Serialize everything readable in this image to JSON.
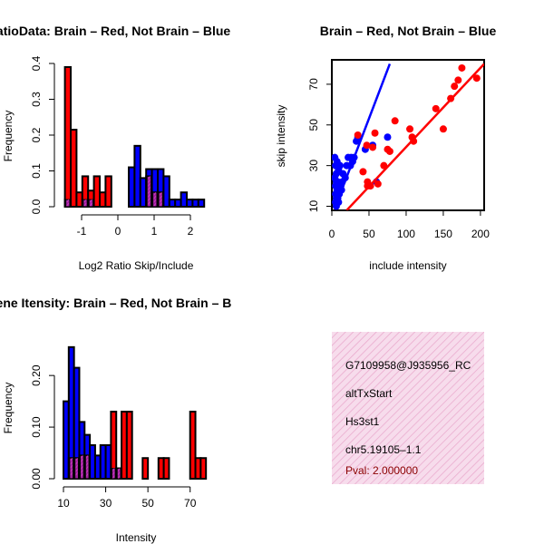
{
  "colors": {
    "red": "#ff0000",
    "blue": "#0000ff",
    "purple": "#a020a0",
    "info_bg": "#f7dcec",
    "info_hatch": "#e9a9cc",
    "pval": "#8b0000"
  },
  "chart_data": [
    {
      "type": "bar",
      "title": "RatioData: Brain – Red, Not Brain – Blue",
      "xlabel": "Log2 Ratio Skip/Include",
      "ylabel": "Frequency",
      "xlim": [
        -1.5,
        2.5
      ],
      "ylim": [
        0,
        0.4
      ],
      "xticks": [
        -1,
        0,
        1,
        2
      ],
      "yticks": [
        0.0,
        0.1,
        0.2,
        0.3,
        0.4
      ],
      "bin_width": 0.16,
      "bin_start": -1.46,
      "series": [
        {
          "name": "Not Brain",
          "color": "blue",
          "values": [
            0.02,
            0.0,
            0.0,
            0.02,
            0.02,
            0.0,
            0.0,
            0.0,
            0.0,
            0.0,
            0.0,
            0.11,
            0.17,
            0.08,
            0.105,
            0.105,
            0.105,
            0.085,
            0.02,
            0.02,
            0.04,
            0.02,
            0.02,
            0.02
          ]
        },
        {
          "name": "Brain",
          "color": "red",
          "values": [
            0.39,
            0.215,
            0.04,
            0.085,
            0.045,
            0.085,
            0.04,
            0.085,
            0.0,
            0.0,
            0.0,
            0.0,
            0.0,
            0.0,
            0.085,
            0.04,
            0.04,
            0.0,
            0.0,
            0.0,
            0.0,
            0.0,
            0.0,
            0.0
          ]
        }
      ]
    },
    {
      "type": "scatter",
      "title": "Brain – Red, Not Brain – Blue",
      "xlabel": "include intensity",
      "ylabel": "skip intensity",
      "xlim": [
        0,
        205
      ],
      "ylim": [
        8,
        82
      ],
      "xticks": [
        0,
        50,
        100,
        150,
        200
      ],
      "yticks": [
        10,
        30,
        50,
        70
      ],
      "series": [
        {
          "name": "Not Brain",
          "color": "blue",
          "points": [
            [
              5,
              12
            ],
            [
              6,
              14
            ],
            [
              7,
              18
            ],
            [
              5,
              20
            ],
            [
              8,
              22
            ],
            [
              4,
              24
            ],
            [
              6,
              26
            ],
            [
              9,
              28
            ],
            [
              5,
              30
            ],
            [
              7,
              32
            ],
            [
              4,
              34
            ],
            [
              10,
              16
            ],
            [
              12,
              20
            ],
            [
              14,
              22
            ],
            [
              8,
              14
            ],
            [
              6,
              10
            ],
            [
              15,
              26
            ],
            [
              18,
              24
            ],
            [
              11,
              30
            ],
            [
              20,
              30
            ],
            [
              9,
              12
            ],
            [
              13,
              18
            ],
            [
              22,
              34
            ],
            [
              26,
              34
            ],
            [
              25,
              30
            ],
            [
              30,
              34
            ],
            [
              28,
              32
            ],
            [
              33,
              42
            ],
            [
              35,
              44
            ],
            [
              45,
              38
            ],
            [
              55,
              40
            ],
            [
              75,
              44
            ],
            [
              60,
              22
            ],
            [
              5,
              16
            ],
            [
              6,
              22
            ]
          ]
        },
        {
          "name": "Brain",
          "color": "red",
          "points": [
            [
              35,
              45
            ],
            [
              42,
              27
            ],
            [
              47,
              40
            ],
            [
              48,
              22
            ],
            [
              52,
              20
            ],
            [
              55,
              39
            ],
            [
              58,
              46
            ],
            [
              62,
              21
            ],
            [
              70,
              30
            ],
            [
              75,
              38
            ],
            [
              78,
              37
            ],
            [
              85,
              52
            ],
            [
              105,
              48
            ],
            [
              108,
              44
            ],
            [
              110,
              42
            ],
            [
              140,
              58
            ],
            [
              160,
              63
            ],
            [
              165,
              69
            ],
            [
              170,
              72
            ],
            [
              175,
              78
            ],
            [
              195,
              73
            ],
            [
              48,
              20
            ],
            [
              150,
              48
            ]
          ]
        }
      ],
      "fit_lines": [
        {
          "color": "blue",
          "from": [
            5,
            10
          ],
          "to": [
            78,
            80
          ]
        },
        {
          "color": "red",
          "from": [
            20,
            8
          ],
          "to": [
            205,
            80
          ]
        }
      ]
    },
    {
      "type": "bar",
      "title": "Gene Itensity: Brain – Red, Not Brain – B",
      "xlabel": "Intensity",
      "ylabel": "Frequency",
      "xlim": [
        10,
        80
      ],
      "ylim": [
        0,
        0.26
      ],
      "xticks": [
        10,
        30,
        50,
        70
      ],
      "yticks": [
        0.0,
        0.1,
        0.2
      ],
      "ytick_labels": [
        "0.00",
        "0.10",
        "0.20"
      ],
      "bin_width": 2.5,
      "bin_start": 10,
      "series": [
        {
          "name": "Not Brain",
          "color": "blue",
          "values": [
            0.15,
            0.255,
            0.215,
            0.11,
            0.085,
            0.065,
            0.045,
            0.065,
            0.065,
            0.02,
            0.02,
            0.0,
            0.0,
            0.0,
            0.0,
            0.0,
            0.0,
            0.0,
            0.0,
            0.0,
            0.0,
            0.0,
            0.0,
            0.0,
            0.0,
            0.0,
            0.0,
            0.0
          ]
        },
        {
          "name": "Brain",
          "color": "red",
          "values": [
            0.0,
            0.04,
            0.04,
            0.045,
            0.045,
            0.0,
            0.0,
            0.0,
            0.0,
            0.13,
            0.02,
            0.13,
            0.13,
            0.0,
            0.0,
            0.04,
            0.0,
            0.0,
            0.04,
            0.04,
            0.0,
            0.0,
            0.0,
            0.0,
            0.13,
            0.04,
            0.04,
            0.0
          ]
        }
      ]
    }
  ],
  "info": {
    "lines": [
      "G7109958@J935956_RC",
      "altTxStart",
      "Hs3st1",
      "chr5.19105–1.1"
    ],
    "pval": "Pval: 2.000000"
  }
}
